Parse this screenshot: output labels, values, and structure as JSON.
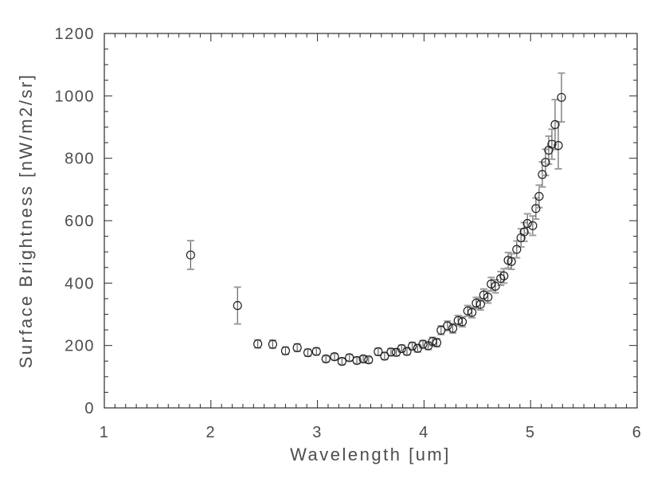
{
  "figure": {
    "background": "#ffffff"
  },
  "chart_data": {
    "type": "scatter",
    "title": "",
    "xlabel": "Wavelength [um]",
    "ylabel": "Surface Brightness [nW/m2/sr]",
    "xlim": [
      1,
      6
    ],
    "ylim": [
      0,
      1200
    ],
    "grid": false,
    "legend": "none",
    "marker": "open-circle",
    "error_bars": "vertical-symmetric",
    "x_ticks": {
      "major": [
        1,
        2,
        3,
        4,
        5,
        6
      ],
      "minor_step": 0.1
    },
    "y_ticks": {
      "major": [
        0,
        200,
        400,
        600,
        800,
        1000,
        1200
      ],
      "minor_step": 50
    },
    "colors": {
      "frame": "#2b2b2b",
      "text": "#4d4d4d",
      "marker": "#1f1f1f",
      "error_bar": "#555555",
      "error_cap": "#9e9e9e",
      "background": "#ffffff"
    },
    "series": [
      {
        "name": "surface-brightness-spectrum",
        "points_format": [
          "wavelength_um",
          "brightness_nW_m2_sr",
          "error_plus_minus"
        ],
        "points": [
          [
            1.81,
            490,
            46
          ],
          [
            2.25,
            328,
            59
          ],
          [
            2.44,
            205,
            13
          ],
          [
            2.58,
            204,
            13
          ],
          [
            2.7,
            183,
            12
          ],
          [
            2.81,
            193,
            12
          ],
          [
            2.91,
            177,
            11
          ],
          [
            2.99,
            181,
            11
          ],
          [
            3.08,
            157,
            10
          ],
          [
            3.16,
            164,
            10
          ],
          [
            3.23,
            149,
            10
          ],
          [
            3.3,
            161,
            10
          ],
          [
            3.37,
            152,
            10
          ],
          [
            3.43,
            157,
            10
          ],
          [
            3.48,
            154,
            10
          ],
          [
            3.57,
            180,
            11
          ],
          [
            3.63,
            166,
            11
          ],
          [
            3.69,
            179,
            11
          ],
          [
            3.74,
            178,
            11
          ],
          [
            3.79,
            190,
            11
          ],
          [
            3.84,
            181,
            11
          ],
          [
            3.89,
            198,
            12
          ],
          [
            3.94,
            191,
            12
          ],
          [
            3.99,
            204,
            12
          ],
          [
            4.04,
            199,
            12
          ],
          [
            4.08,
            213,
            13
          ],
          [
            4.12,
            209,
            13
          ],
          [
            4.16,
            249,
            14
          ],
          [
            4.22,
            263,
            15
          ],
          [
            4.27,
            255,
            15
          ],
          [
            4.32,
            280,
            16
          ],
          [
            4.36,
            276,
            16
          ],
          [
            4.41,
            311,
            17
          ],
          [
            4.45,
            306,
            17
          ],
          [
            4.49,
            336,
            18
          ],
          [
            4.53,
            332,
            18
          ],
          [
            4.56,
            362,
            19
          ],
          [
            4.6,
            355,
            19
          ],
          [
            4.63,
            397,
            21
          ],
          [
            4.67,
            390,
            21
          ],
          [
            4.72,
            415,
            22
          ],
          [
            4.75,
            423,
            23
          ],
          [
            4.79,
            473,
            25
          ],
          [
            4.82,
            469,
            25
          ],
          [
            4.87,
            508,
            27
          ],
          [
            4.91,
            545,
            29
          ],
          [
            4.94,
            564,
            30
          ],
          [
            4.97,
            591,
            31
          ],
          [
            5.02,
            584,
            31
          ],
          [
            5.05,
            639,
            34
          ],
          [
            5.08,
            678,
            36
          ],
          [
            5.11,
            748,
            40
          ],
          [
            5.14,
            787,
            42
          ],
          [
            5.17,
            826,
            45
          ],
          [
            5.2,
            845,
            48
          ],
          [
            5.23,
            908,
            80
          ],
          [
            5.26,
            841,
            75
          ],
          [
            5.29,
            995,
            78
          ]
        ]
      }
    ]
  }
}
